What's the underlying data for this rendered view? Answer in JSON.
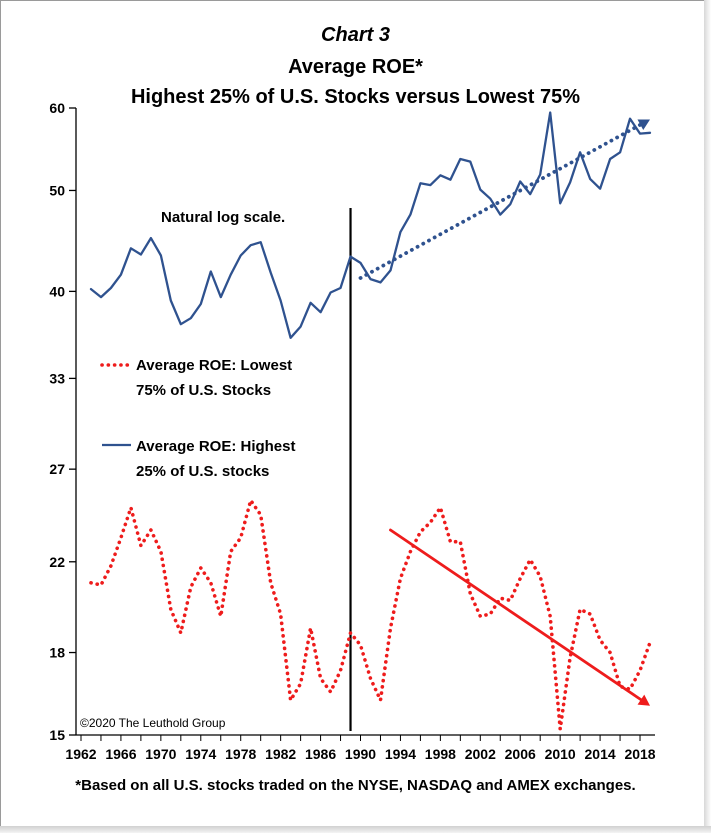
{
  "chart_data": {
    "type": "line",
    "title": "Chart 3",
    "subtitle_1": "Average ROE*",
    "subtitle_2": "Highest 25% of U.S. Stocks versus Lowest 75%",
    "scale": "log",
    "scale_note": "Natural log scale.",
    "footnote": "*Based on all U.S. stocks traded on the NYSE, NASDAQ and AMEX exchanges.",
    "copyright": "©2020 The Leuthold Group",
    "ylim": [
      15,
      60
    ],
    "xlim": [
      1961.5,
      2019.5
    ],
    "y_ticks": [
      15,
      18,
      22,
      27,
      33,
      40,
      50,
      60
    ],
    "y_tick_labels": [
      "15",
      "18",
      "22",
      "27",
      "33",
      "40",
      "50",
      "60"
    ],
    "x_ticks": [
      1962,
      1966,
      1970,
      1974,
      1978,
      1982,
      1986,
      1990,
      1994,
      1998,
      2002,
      2006,
      2010,
      2014,
      2018
    ],
    "x_tick_labels": [
      "1962",
      "1966",
      "1970",
      "1974",
      "1978",
      "1982",
      "1986",
      "1990",
      "1994",
      "1998",
      "2002",
      "2006",
      "2010",
      "2014",
      "2018"
    ],
    "vertical_marker_x": 1989,
    "series": [
      {
        "name": "Average ROE: Highest 25% of U.S. stocks",
        "legend_line_1": "Average ROE: Highest",
        "legend_line_2": "25% of U.S. stocks",
        "color": "#2f528f",
        "style": "solid",
        "x": [
          1963,
          1964,
          1965,
          1966,
          1967,
          1968,
          1969,
          1970,
          1971,
          1972,
          1973,
          1974,
          1975,
          1976,
          1977,
          1978,
          1979,
          1980,
          1981,
          1982,
          1983,
          1984,
          1985,
          1986,
          1987,
          1988,
          1989,
          1990,
          1991,
          1992,
          1993,
          1994,
          1995,
          1996,
          1997,
          1998,
          1999,
          2000,
          2001,
          2002,
          2003,
          2004,
          2005,
          2006,
          2007,
          2008,
          2009,
          2010,
          2011,
          2012,
          2013,
          2014,
          2015,
          2016,
          2017,
          2018,
          2019
        ],
        "values": [
          40.2,
          39.5,
          40.3,
          41.5,
          44.0,
          43.4,
          45.0,
          43.3,
          39.2,
          37.2,
          37.7,
          38.9,
          41.8,
          39.5,
          41.5,
          43.3,
          44.3,
          44.6,
          41.7,
          39.2,
          36.1,
          37.0,
          39.0,
          38.2,
          39.9,
          40.3,
          43.2,
          42.6,
          41.1,
          40.8,
          41.9,
          45.6,
          47.4,
          50.8,
          50.6,
          51.7,
          51.2,
          53.6,
          53.3,
          50.1,
          49.1,
          47.4,
          48.5,
          51.0,
          49.6,
          51.8,
          59.4,
          48.6,
          50.9,
          54.4,
          51.3,
          50.2,
          53.6,
          54.4,
          58.6,
          56.7,
          56.8
        ]
      },
      {
        "name": "Average ROE: Lowest 75% of U.S. Stocks",
        "legend_line_1": "Average ROE: Lowest",
        "legend_line_2": "75% of U.S. Stocks",
        "color": "#ee1c1c",
        "style": "dotted",
        "x": [
          1963,
          1964,
          1965,
          1966,
          1967,
          1968,
          1969,
          1970,
          1971,
          1972,
          1973,
          1974,
          1975,
          1976,
          1977,
          1978,
          1979,
          1980,
          1981,
          1982,
          1983,
          1984,
          1985,
          1986,
          1987,
          1988,
          1989,
          1990,
          1991,
          1992,
          1993,
          1994,
          1995,
          1996,
          1997,
          1998,
          1999,
          2000,
          2001,
          2002,
          2003,
          2004,
          2005,
          2006,
          2007,
          2008,
          2009,
          2010,
          2011,
          2012,
          2013,
          2014,
          2015,
          2016,
          2017,
          2018,
          2019
        ],
        "values": [
          21.0,
          20.9,
          21.8,
          23.2,
          24.8,
          22.8,
          23.6,
          22.5,
          19.8,
          18.8,
          20.8,
          21.7,
          21.0,
          19.5,
          22.5,
          23.2,
          25.2,
          24.4,
          21.0,
          19.6,
          16.2,
          16.8,
          19.0,
          17.0,
          16.5,
          17.3,
          18.8,
          18.3,
          17.0,
          16.2,
          19.0,
          21.2,
          22.5,
          23.5,
          24.0,
          24.8,
          23.0,
          23.0,
          20.5,
          19.5,
          19.6,
          20.3,
          20.2,
          21.2,
          22.1,
          21.3,
          19.5,
          15.2,
          17.8,
          19.8,
          19.6,
          18.5,
          18.0,
          16.7,
          16.6,
          17.3,
          18.4
        ]
      }
    ],
    "trendlines": [
      {
        "name": "Highest 25% trend",
        "color": "#2f528f",
        "style": "dotted",
        "x": [
          1990,
          2019
        ],
        "values": [
          41.2,
          58.5
        ]
      },
      {
        "name": "Lowest 75% trend",
        "color": "#ee1c1c",
        "style": "solid",
        "x": [
          1993,
          2019
        ],
        "values": [
          23.6,
          16.0
        ]
      }
    ]
  }
}
